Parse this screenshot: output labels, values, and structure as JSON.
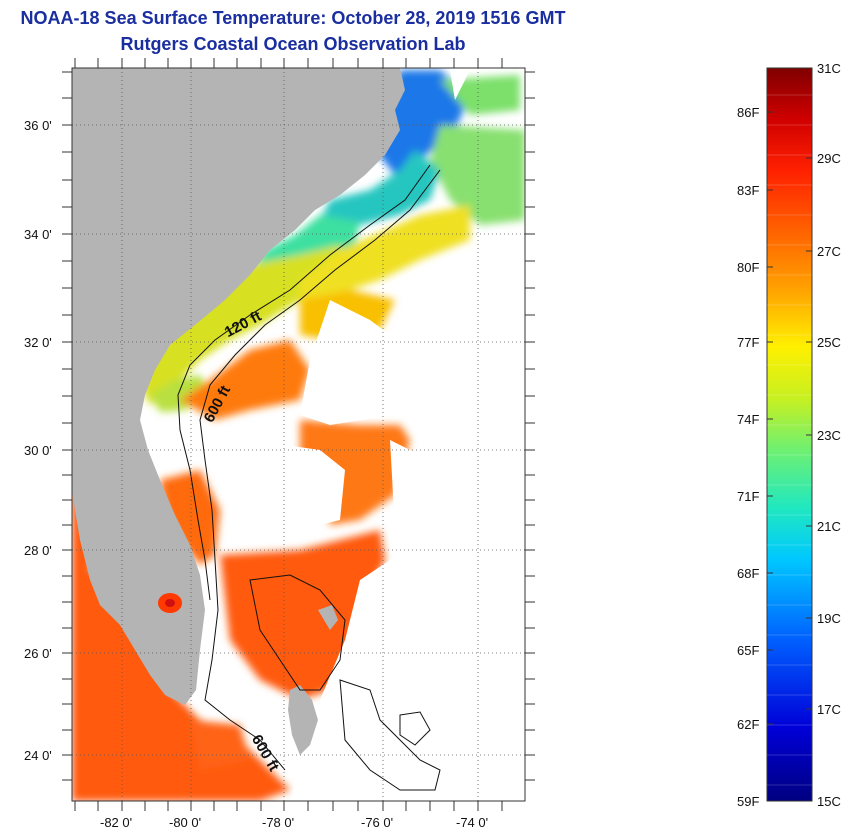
{
  "title": {
    "line1": "NOAA-18 Sea Surface Temperature:  October 28, 2019 1516 GMT",
    "line2": "Rutgers Coastal Ocean Observation Lab"
  },
  "axes": {
    "latitude_labels": [
      "36 0'",
      "34 0'",
      "32 0'",
      "30 0'",
      "28 0'",
      "26 0'",
      "24 0'"
    ],
    "longitude_labels": [
      "-82 0'",
      "-80 0'",
      "-78 0'",
      "-76 0'",
      "-74 0'"
    ]
  },
  "contours": {
    "label_120": "120 ft",
    "label_600_north": "600 ft",
    "label_600_south": "600 ft"
  },
  "colorbar": {
    "fahrenheit": [
      "86F",
      "83F",
      "80F",
      "77F",
      "74F",
      "71F",
      "68F",
      "65F",
      "62F",
      "59F"
    ],
    "celsius": [
      "31C",
      "29C",
      "27C",
      "25C",
      "23C",
      "21C",
      "19C",
      "17C",
      "15C"
    ]
  },
  "colors": {
    "title": "#1a2ea0",
    "land": "#b4b4b4",
    "ocean_missing": "#ffffff"
  }
}
